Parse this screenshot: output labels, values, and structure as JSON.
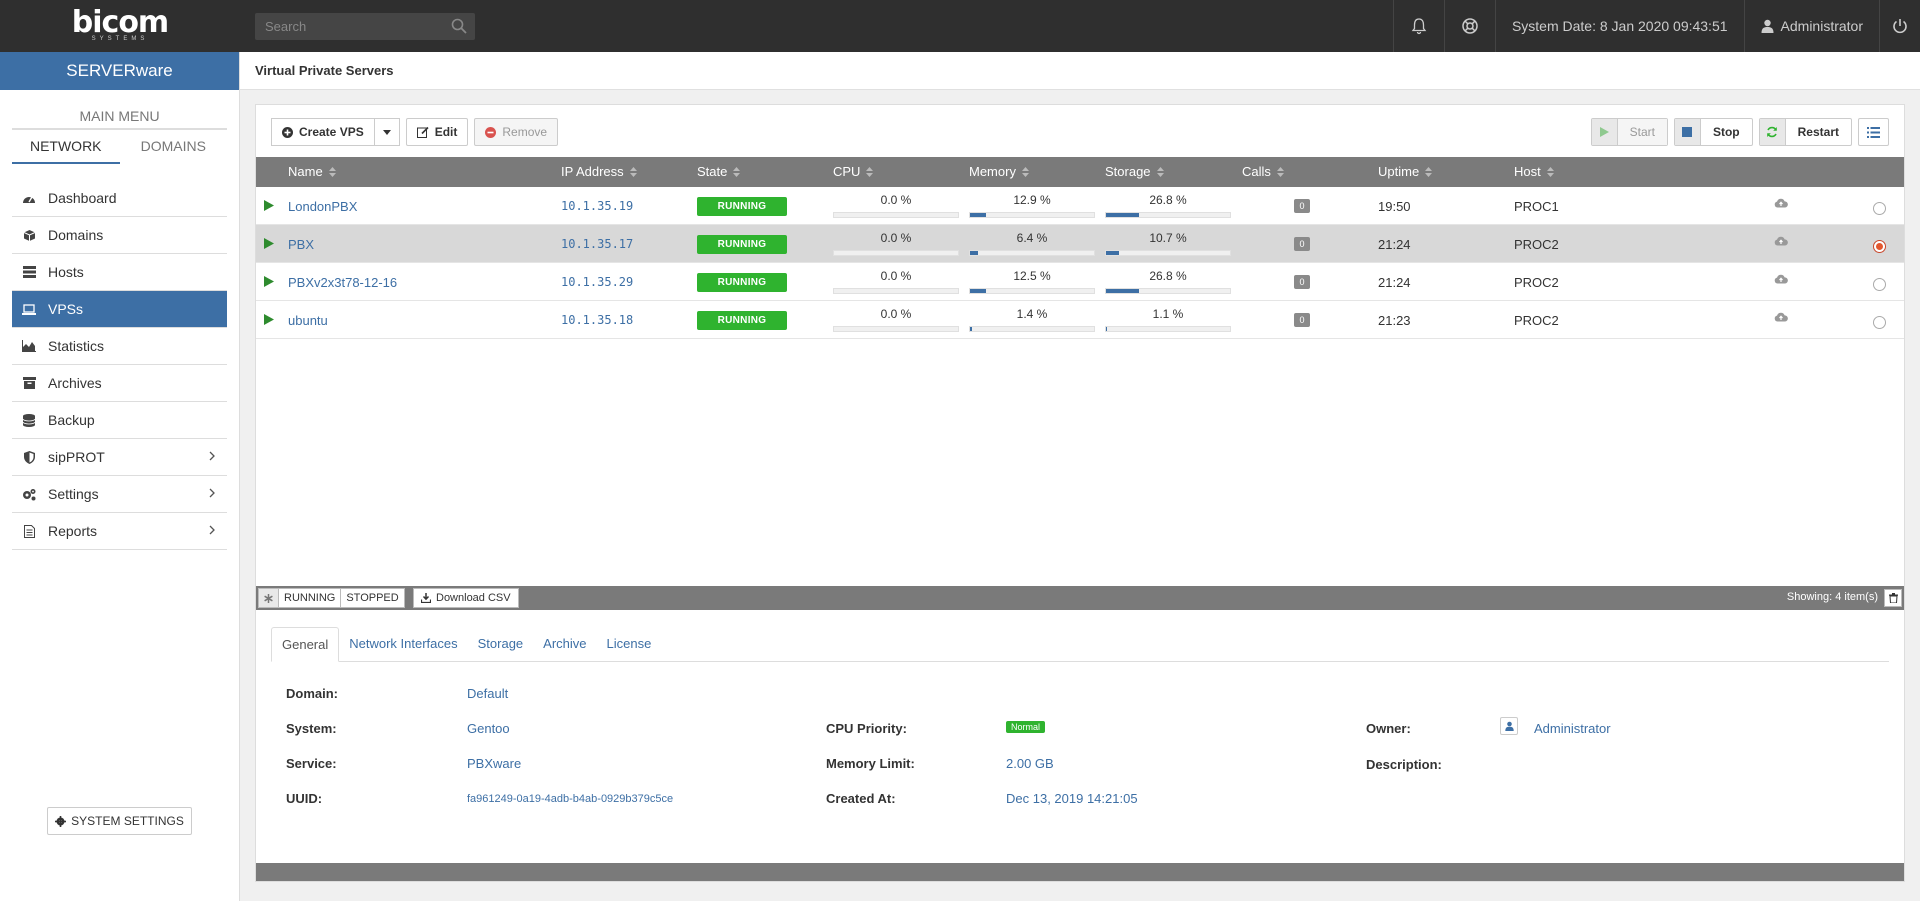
{
  "topbar": {
    "logo_word": "bicom",
    "logo_sub": "SYSTEMS",
    "search_placeholder": "Search",
    "system_date": "System Date: 8 Jan 2020 09:43:51",
    "user": "Administrator"
  },
  "sidebar": {
    "brand": "SERVERware",
    "main_menu": "MAIN MENU",
    "tabs": [
      {
        "label": "NETWORK"
      },
      {
        "label": "DOMAINS"
      }
    ],
    "items": [
      {
        "label": "Dashboard",
        "icon": "dashboard-icon"
      },
      {
        "label": "Domains",
        "icon": "cube-icon"
      },
      {
        "label": "Hosts",
        "icon": "server-icon"
      },
      {
        "label": "VPSs",
        "icon": "laptop-icon"
      },
      {
        "label": "Statistics",
        "icon": "area-chart-icon"
      },
      {
        "label": "Archives",
        "icon": "archive-icon"
      },
      {
        "label": "Backup",
        "icon": "database-icon"
      },
      {
        "label": "sipPROT",
        "icon": "shield-icon"
      },
      {
        "label": "Settings",
        "icon": "cogs-icon"
      },
      {
        "label": "Reports",
        "icon": "file-icon"
      }
    ],
    "system_settings": "SYSTEM SETTINGS"
  },
  "page": {
    "title": "Virtual Private Servers"
  },
  "toolbar": {
    "create_vps": "Create VPS",
    "edit": "Edit",
    "remove": "Remove",
    "start": "Start",
    "stop": "Stop",
    "restart": "Restart"
  },
  "table": {
    "columns": [
      "Name",
      "IP Address",
      "State",
      "CPU",
      "Memory",
      "Storage",
      "Calls",
      "Uptime",
      "Host"
    ],
    "rows": [
      {
        "name": "LondonPBX",
        "ip": "10.1.35.19",
        "state": "RUNNING",
        "cpu": "0.0 %",
        "cpu_pct": 0.0,
        "memory": "12.9 %",
        "memory_pct": 12.9,
        "storage": "26.8 %",
        "storage_pct": 26.8,
        "calls": "0",
        "uptime": "19:50",
        "host": "PROC1",
        "selected": false
      },
      {
        "name": "PBX",
        "ip": "10.1.35.17",
        "state": "RUNNING",
        "cpu": "0.0 %",
        "cpu_pct": 0.0,
        "memory": "6.4 %",
        "memory_pct": 6.4,
        "storage": "10.7 %",
        "storage_pct": 10.7,
        "calls": "0",
        "uptime": "21:24",
        "host": "PROC2",
        "selected": true
      },
      {
        "name": "PBXv2x3t78-12-16",
        "ip": "10.1.35.29",
        "state": "RUNNING",
        "cpu": "0.0 %",
        "cpu_pct": 0.0,
        "memory": "12.5 %",
        "memory_pct": 12.5,
        "storage": "26.8 %",
        "storage_pct": 26.8,
        "calls": "0",
        "uptime": "21:24",
        "host": "PROC2",
        "selected": false
      },
      {
        "name": "ubuntu",
        "ip": "10.1.35.18",
        "state": "RUNNING",
        "cpu": "0.0 %",
        "cpu_pct": 0.0,
        "memory": "1.4 %",
        "memory_pct": 1.4,
        "storage": "1.1 %",
        "storage_pct": 1.1,
        "calls": "0",
        "uptime": "21:23",
        "host": "PROC2",
        "selected": false
      }
    ]
  },
  "footer": {
    "filter_running": "RUNNING",
    "filter_stopped": "STOPPED",
    "download_csv": "Download CSV",
    "showing": "Showing: 4 item(s)"
  },
  "details": {
    "tabs": [
      "General",
      "Network Interfaces",
      "Storage",
      "Archive",
      "License"
    ],
    "domain_label": "Domain:",
    "domain": "Default",
    "system_label": "System:",
    "system": "Gentoo",
    "service_label": "Service:",
    "service": "PBXware",
    "uuid_label": "UUID:",
    "uuid": "fa961249-0a19-4adb-b4ab-0929b379c5ce",
    "cpu_priority_label": "CPU Priority:",
    "cpu_priority": "Normal",
    "memory_limit_label": "Memory Limit:",
    "memory_limit": "2.00 GB",
    "created_at_label": "Created At:",
    "created_at": "Dec 13, 2019 14:21:05",
    "owner_label": "Owner:",
    "owner": "Administrator",
    "description_label": "Description:"
  },
  "colors": {
    "accent": "#3d6fa5",
    "running": "#2fb32f",
    "topbar": "#2f2f2f",
    "table_header": "#7a7a7a"
  }
}
